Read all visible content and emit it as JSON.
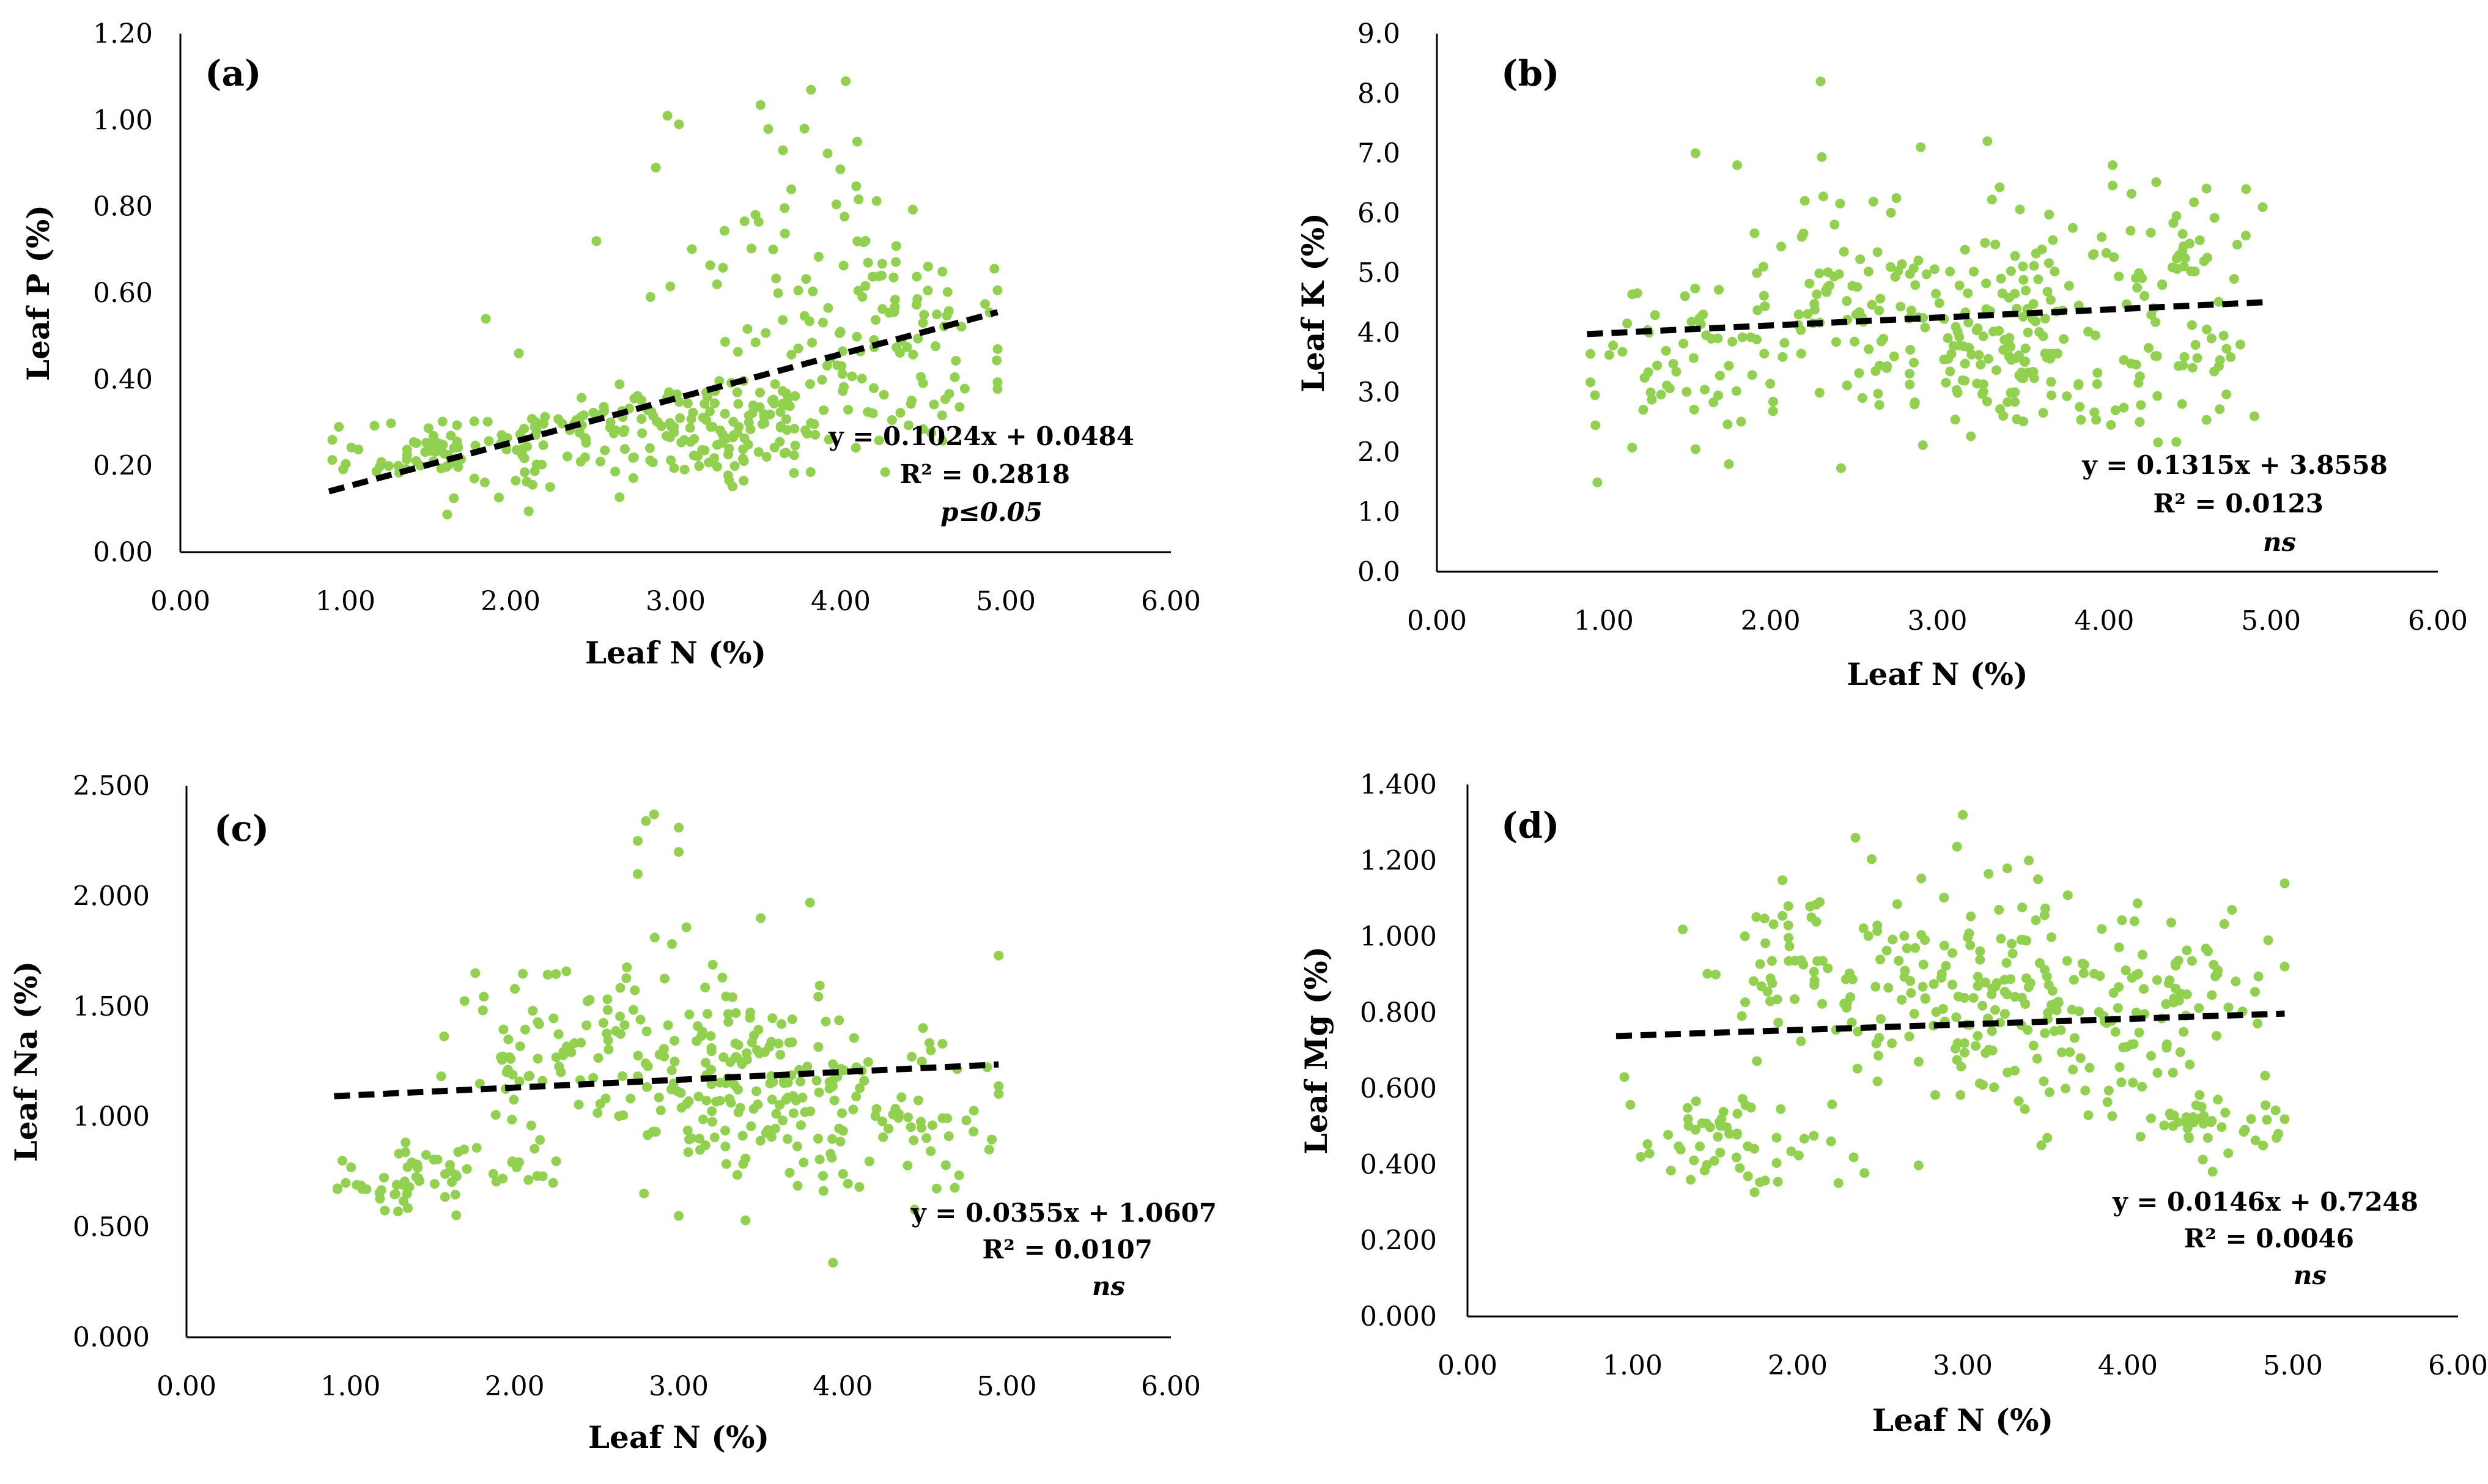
{
  "chart_data": [
    {
      "panel": "(a)",
      "type": "scatter",
      "xlabel": "Leaf N (%)",
      "ylabel": "Leaf P (%)",
      "xlim": [
        0,
        6
      ],
      "ylim": [
        0,
        1.2
      ],
      "xticks": [
        "0.00",
        "1.00",
        "2.00",
        "3.00",
        "4.00",
        "5.00",
        "6.00"
      ],
      "yticks": [
        "0.00",
        "0.20",
        "0.40",
        "0.60",
        "0.80",
        "1.00",
        "1.20"
      ],
      "trend": {
        "slope": 0.1024,
        "intercept": 0.0484,
        "x_range": [
          0.9,
          4.95
        ]
      },
      "equation": "y = 0.1024x + 0.0484",
      "r2": "R² = 0.2818",
      "significance": "p≤0.05",
      "marker_color": "#92d050",
      "clusters": [
        {
          "cx": 1.6,
          "cy": 0.23,
          "sx": 0.35,
          "sy": 0.05,
          "n": 70
        },
        {
          "cx": 2.5,
          "cy": 0.28,
          "sx": 0.35,
          "sy": 0.05,
          "n": 70
        },
        {
          "cx": 3.3,
          "cy": 0.28,
          "sx": 0.3,
          "sy": 0.05,
          "n": 90
        },
        {
          "cx": 3.8,
          "cy": 0.38,
          "sx": 0.25,
          "sy": 0.12,
          "n": 50
        },
        {
          "cx": 4.4,
          "cy": 0.65,
          "sx": 0.25,
          "sy": 0.1,
          "n": 50
        },
        {
          "cx": 4.5,
          "cy": 0.38,
          "sx": 0.3,
          "sy": 0.07,
          "n": 35
        },
        {
          "cx": 3.4,
          "cy": 0.65,
          "sx": 0.35,
          "sy": 0.15,
          "n": 25
        }
      ],
      "points": [
        [
          2.95,
          1.01
        ],
        [
          3.02,
          0.99
        ],
        [
          2.88,
          0.89
        ],
        [
          3.82,
          1.07
        ],
        [
          4.03,
          1.09
        ],
        [
          4.1,
          0.95
        ],
        [
          2.52,
          0.72
        ],
        [
          1.85,
          0.54
        ],
        [
          2.05,
          0.46
        ],
        [
          0.96,
          0.29
        ],
        [
          3.65,
          0.93
        ],
        [
          3.78,
          0.98
        ]
      ]
    },
    {
      "panel": "(b)",
      "type": "scatter",
      "xlabel": "Leaf N (%)",
      "ylabel": "Leaf K (%)",
      "xlim": [
        0,
        6
      ],
      "ylim": [
        0,
        9
      ],
      "xticks": [
        "0.00",
        "1.00",
        "2.00",
        "3.00",
        "4.00",
        "5.00",
        "6.00"
      ],
      "yticks": [
        "0.0",
        "1.0",
        "2.0",
        "3.0",
        "4.0",
        "5.0",
        "6.0",
        "7.0",
        "8.0",
        "9.0"
      ],
      "trend": {
        "slope": 0.1315,
        "intercept": 3.8558,
        "x_range": [
          0.9,
          4.95
        ]
      },
      "equation": "y = 0.1315x + 3.8558",
      "r2": "R² = 0.0123",
      "significance": "ns",
      "marker_color": "#92d050",
      "clusters": [
        {
          "cx": 1.5,
          "cy": 3.6,
          "sx": 0.3,
          "sy": 0.7,
          "n": 50
        },
        {
          "cx": 2.3,
          "cy": 4.6,
          "sx": 0.35,
          "sy": 1.1,
          "n": 70
        },
        {
          "cx": 3.0,
          "cy": 4.0,
          "sx": 0.3,
          "sy": 0.9,
          "n": 70
        },
        {
          "cx": 3.5,
          "cy": 3.8,
          "sx": 0.3,
          "sy": 0.8,
          "n": 90
        },
        {
          "cx": 4.3,
          "cy": 5.5,
          "sx": 0.3,
          "sy": 0.6,
          "n": 50
        },
        {
          "cx": 4.4,
          "cy": 3.3,
          "sx": 0.3,
          "sy": 0.6,
          "n": 40
        }
      ],
      "points": [
        [
          2.3,
          8.2
        ],
        [
          3.3,
          7.2
        ],
        [
          2.9,
          7.1
        ],
        [
          1.55,
          7.0
        ],
        [
          4.05,
          6.8
        ],
        [
          1.8,
          6.8
        ],
        [
          0.95,
          2.45
        ],
        [
          1.75,
          1.8
        ],
        [
          4.85,
          6.4
        ],
        [
          1.55,
          2.05
        ],
        [
          4.9,
          2.6
        ]
      ]
    },
    {
      "panel": "(c)",
      "type": "scatter",
      "xlabel": "Leaf N (%)",
      "ylabel": "Leaf Na (%)",
      "xlim": [
        0,
        6
      ],
      "ylim": [
        0,
        2.5
      ],
      "xticks": [
        "0.00",
        "1.00",
        "2.00",
        "3.00",
        "4.00",
        "5.00",
        "6.00"
      ],
      "yticks": [
        "0.000",
        "0.500",
        "1.000",
        "1.500",
        "2.000",
        "2.500"
      ],
      "trend": {
        "slope": 0.0355,
        "intercept": 1.0607,
        "x_range": [
          0.9,
          4.95
        ]
      },
      "equation": "y = 0.0355x + 1.0607",
      "r2": "R² = 0.0107",
      "significance": "ns",
      "marker_color": "#92d050",
      "clusters": [
        {
          "cx": 1.35,
          "cy": 0.72,
          "sx": 0.25,
          "sy": 0.08,
          "n": 40
        },
        {
          "cx": 2.2,
          "cy": 1.3,
          "sx": 0.35,
          "sy": 0.2,
          "n": 70
        },
        {
          "cx": 3.1,
          "cy": 1.2,
          "sx": 0.3,
          "sy": 0.25,
          "n": 90
        },
        {
          "cx": 3.6,
          "cy": 1.1,
          "sx": 0.3,
          "sy": 0.25,
          "n": 80
        },
        {
          "cx": 4.3,
          "cy": 1.0,
          "sx": 0.35,
          "sy": 0.2,
          "n": 70
        },
        {
          "cx": 1.9,
          "cy": 0.75,
          "sx": 0.3,
          "sy": 0.08,
          "n": 25
        }
      ],
      "points": [
        [
          2.85,
          2.37
        ],
        [
          2.8,
          2.34
        ],
        [
          3.0,
          2.31
        ],
        [
          2.75,
          2.25
        ],
        [
          3.0,
          2.2
        ],
        [
          2.75,
          2.1
        ],
        [
          4.95,
          1.73
        ],
        [
          0.95,
          0.8
        ],
        [
          3.0,
          0.55
        ],
        [
          3.5,
          1.9
        ],
        [
          3.8,
          1.97
        ]
      ]
    },
    {
      "panel": "(d)",
      "type": "scatter",
      "xlabel": "Leaf N (%)",
      "ylabel": "Leaf Mg (%)",
      "xlim": [
        0,
        6
      ],
      "ylim": [
        0,
        1.4
      ],
      "xticks": [
        "0.00",
        "1.00",
        "2.00",
        "3.00",
        "4.00",
        "5.00",
        "6.00"
      ],
      "yticks": [
        "0.000",
        "0.200",
        "0.400",
        "0.600",
        "0.800",
        "1.000",
        "1.200",
        "1.400"
      ],
      "trend": {
        "slope": 0.0146,
        "intercept": 0.7248,
        "x_range": [
          0.9,
          4.95
        ]
      },
      "equation": "y = 0.0146x + 0.7248",
      "r2": "R² = 0.0046",
      "significance": "ns",
      "marker_color": "#92d050",
      "clusters": [
        {
          "cx": 1.4,
          "cy": 0.47,
          "sx": 0.25,
          "sy": 0.06,
          "n": 40
        },
        {
          "cx": 2.0,
          "cy": 0.9,
          "sx": 0.3,
          "sy": 0.12,
          "n": 50
        },
        {
          "cx": 2.7,
          "cy": 0.9,
          "sx": 0.3,
          "sy": 0.15,
          "n": 60
        },
        {
          "cx": 3.3,
          "cy": 0.8,
          "sx": 0.3,
          "sy": 0.15,
          "n": 90
        },
        {
          "cx": 3.9,
          "cy": 0.8,
          "sx": 0.3,
          "sy": 0.15,
          "n": 70
        },
        {
          "cx": 4.5,
          "cy": 0.5,
          "sx": 0.25,
          "sy": 0.06,
          "n": 40
        },
        {
          "cx": 4.5,
          "cy": 0.85,
          "sx": 0.25,
          "sy": 0.1,
          "n": 30
        },
        {
          "cx": 2.0,
          "cy": 0.4,
          "sx": 0.2,
          "sy": 0.04,
          "n": 15
        }
      ],
      "points": [
        [
          3.0,
          1.32
        ],
        [
          2.35,
          1.26
        ],
        [
          3.4,
          1.2
        ],
        [
          4.95,
          1.14
        ],
        [
          0.95,
          0.63
        ],
        [
          1.05,
          0.42
        ],
        [
          4.9,
          0.47
        ],
        [
          4.85,
          0.99
        ]
      ]
    }
  ]
}
